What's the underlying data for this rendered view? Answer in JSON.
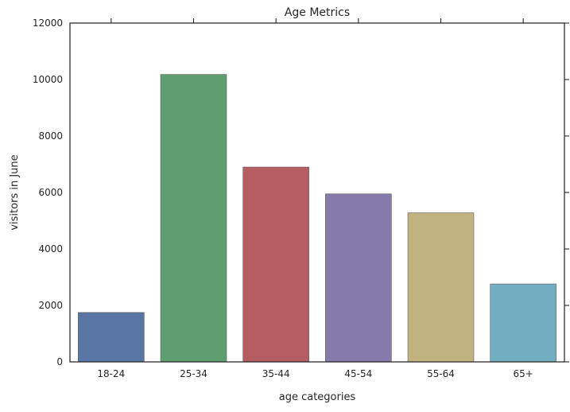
{
  "chart_data": {
    "type": "bar",
    "title": "Age Metrics",
    "xlabel": "age categories",
    "ylabel": "visitors in June",
    "categories": [
      "18-24",
      "25-34",
      "35-44",
      "45-54",
      "55-64",
      "65+"
    ],
    "values": [
      1750,
      10180,
      6900,
      5950,
      5280,
      2760
    ],
    "ylim": [
      0,
      12000
    ],
    "yticks": [
      0,
      2000,
      4000,
      6000,
      8000,
      10000,
      12000
    ],
    "colors": [
      "#5975a4",
      "#5f9e6e",
      "#b55d60",
      "#857aab",
      "#c1b37f",
      "#71aec0"
    ],
    "grid": false,
    "legend": "none"
  }
}
